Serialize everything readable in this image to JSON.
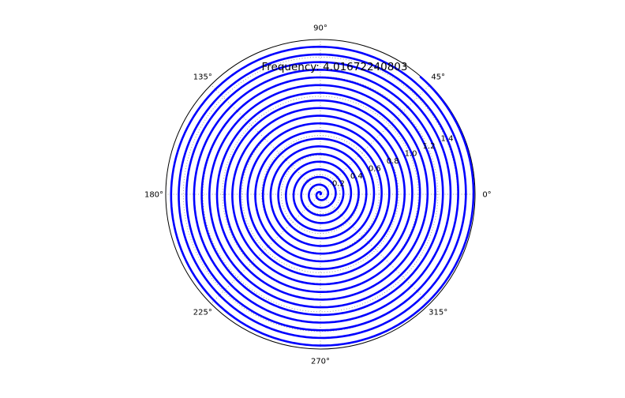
{
  "chart_data": {
    "type": "line",
    "projection": "polar",
    "title": "Frequency: 4.01672240803",
    "theta_ticks_deg": [
      0,
      45,
      90,
      135,
      180,
      225,
      270,
      315
    ],
    "theta_tick_labels": [
      "0°",
      "45°",
      "90°",
      "135°",
      "180°",
      "225°",
      "270°",
      "315°"
    ],
    "r_ticks": [
      0.2,
      0.4,
      0.6,
      0.8,
      1.0,
      1.2,
      1.4
    ],
    "r_tick_labels": [
      "0.2",
      "0.4",
      "0.6",
      "0.8",
      "1.0",
      "1.2",
      "1.4"
    ],
    "rlim": [
      0,
      1.58
    ],
    "grid": true,
    "legend": "none",
    "series": [
      {
        "color": "#0000ff",
        "frequency": 4.01672240803,
        "theta_range_rad": [
          0,
          31.5
        ],
        "r_function": "r = theta / 20",
        "theta_function": "angle = frequency * theta"
      }
    ]
  }
}
